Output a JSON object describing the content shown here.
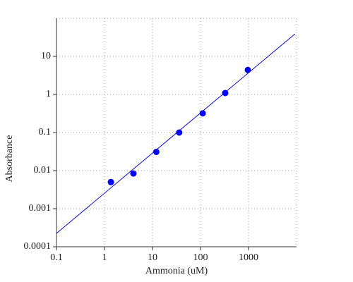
{
  "chart_data": {
    "type": "scatter",
    "x_label": "Ammonia (uM)",
    "y_label": "Absorbance",
    "xscale": "log",
    "yscale": "log",
    "xlim": [
      0.1,
      10000
    ],
    "ylim": [
      0.0001,
      100
    ],
    "xticks": [
      0.1,
      1,
      10,
      100,
      1000
    ],
    "yticks": [
      0.0001,
      0.001,
      0.01,
      0.1,
      1,
      10
    ],
    "grid": true,
    "series": [
      {
        "type": "scatter",
        "color": "#0000ff",
        "x": [
          1.36,
          4,
          12,
          36,
          111,
          327,
          967
        ],
        "values": [
          0.005,
          0.0084,
          0.031,
          0.1,
          0.32,
          1.09,
          4.4
        ]
      },
      {
        "type": "line",
        "color": "#1010d0",
        "x": [
          0.1,
          9300
        ],
        "values": [
          0.000225,
          39
        ]
      }
    ]
  }
}
